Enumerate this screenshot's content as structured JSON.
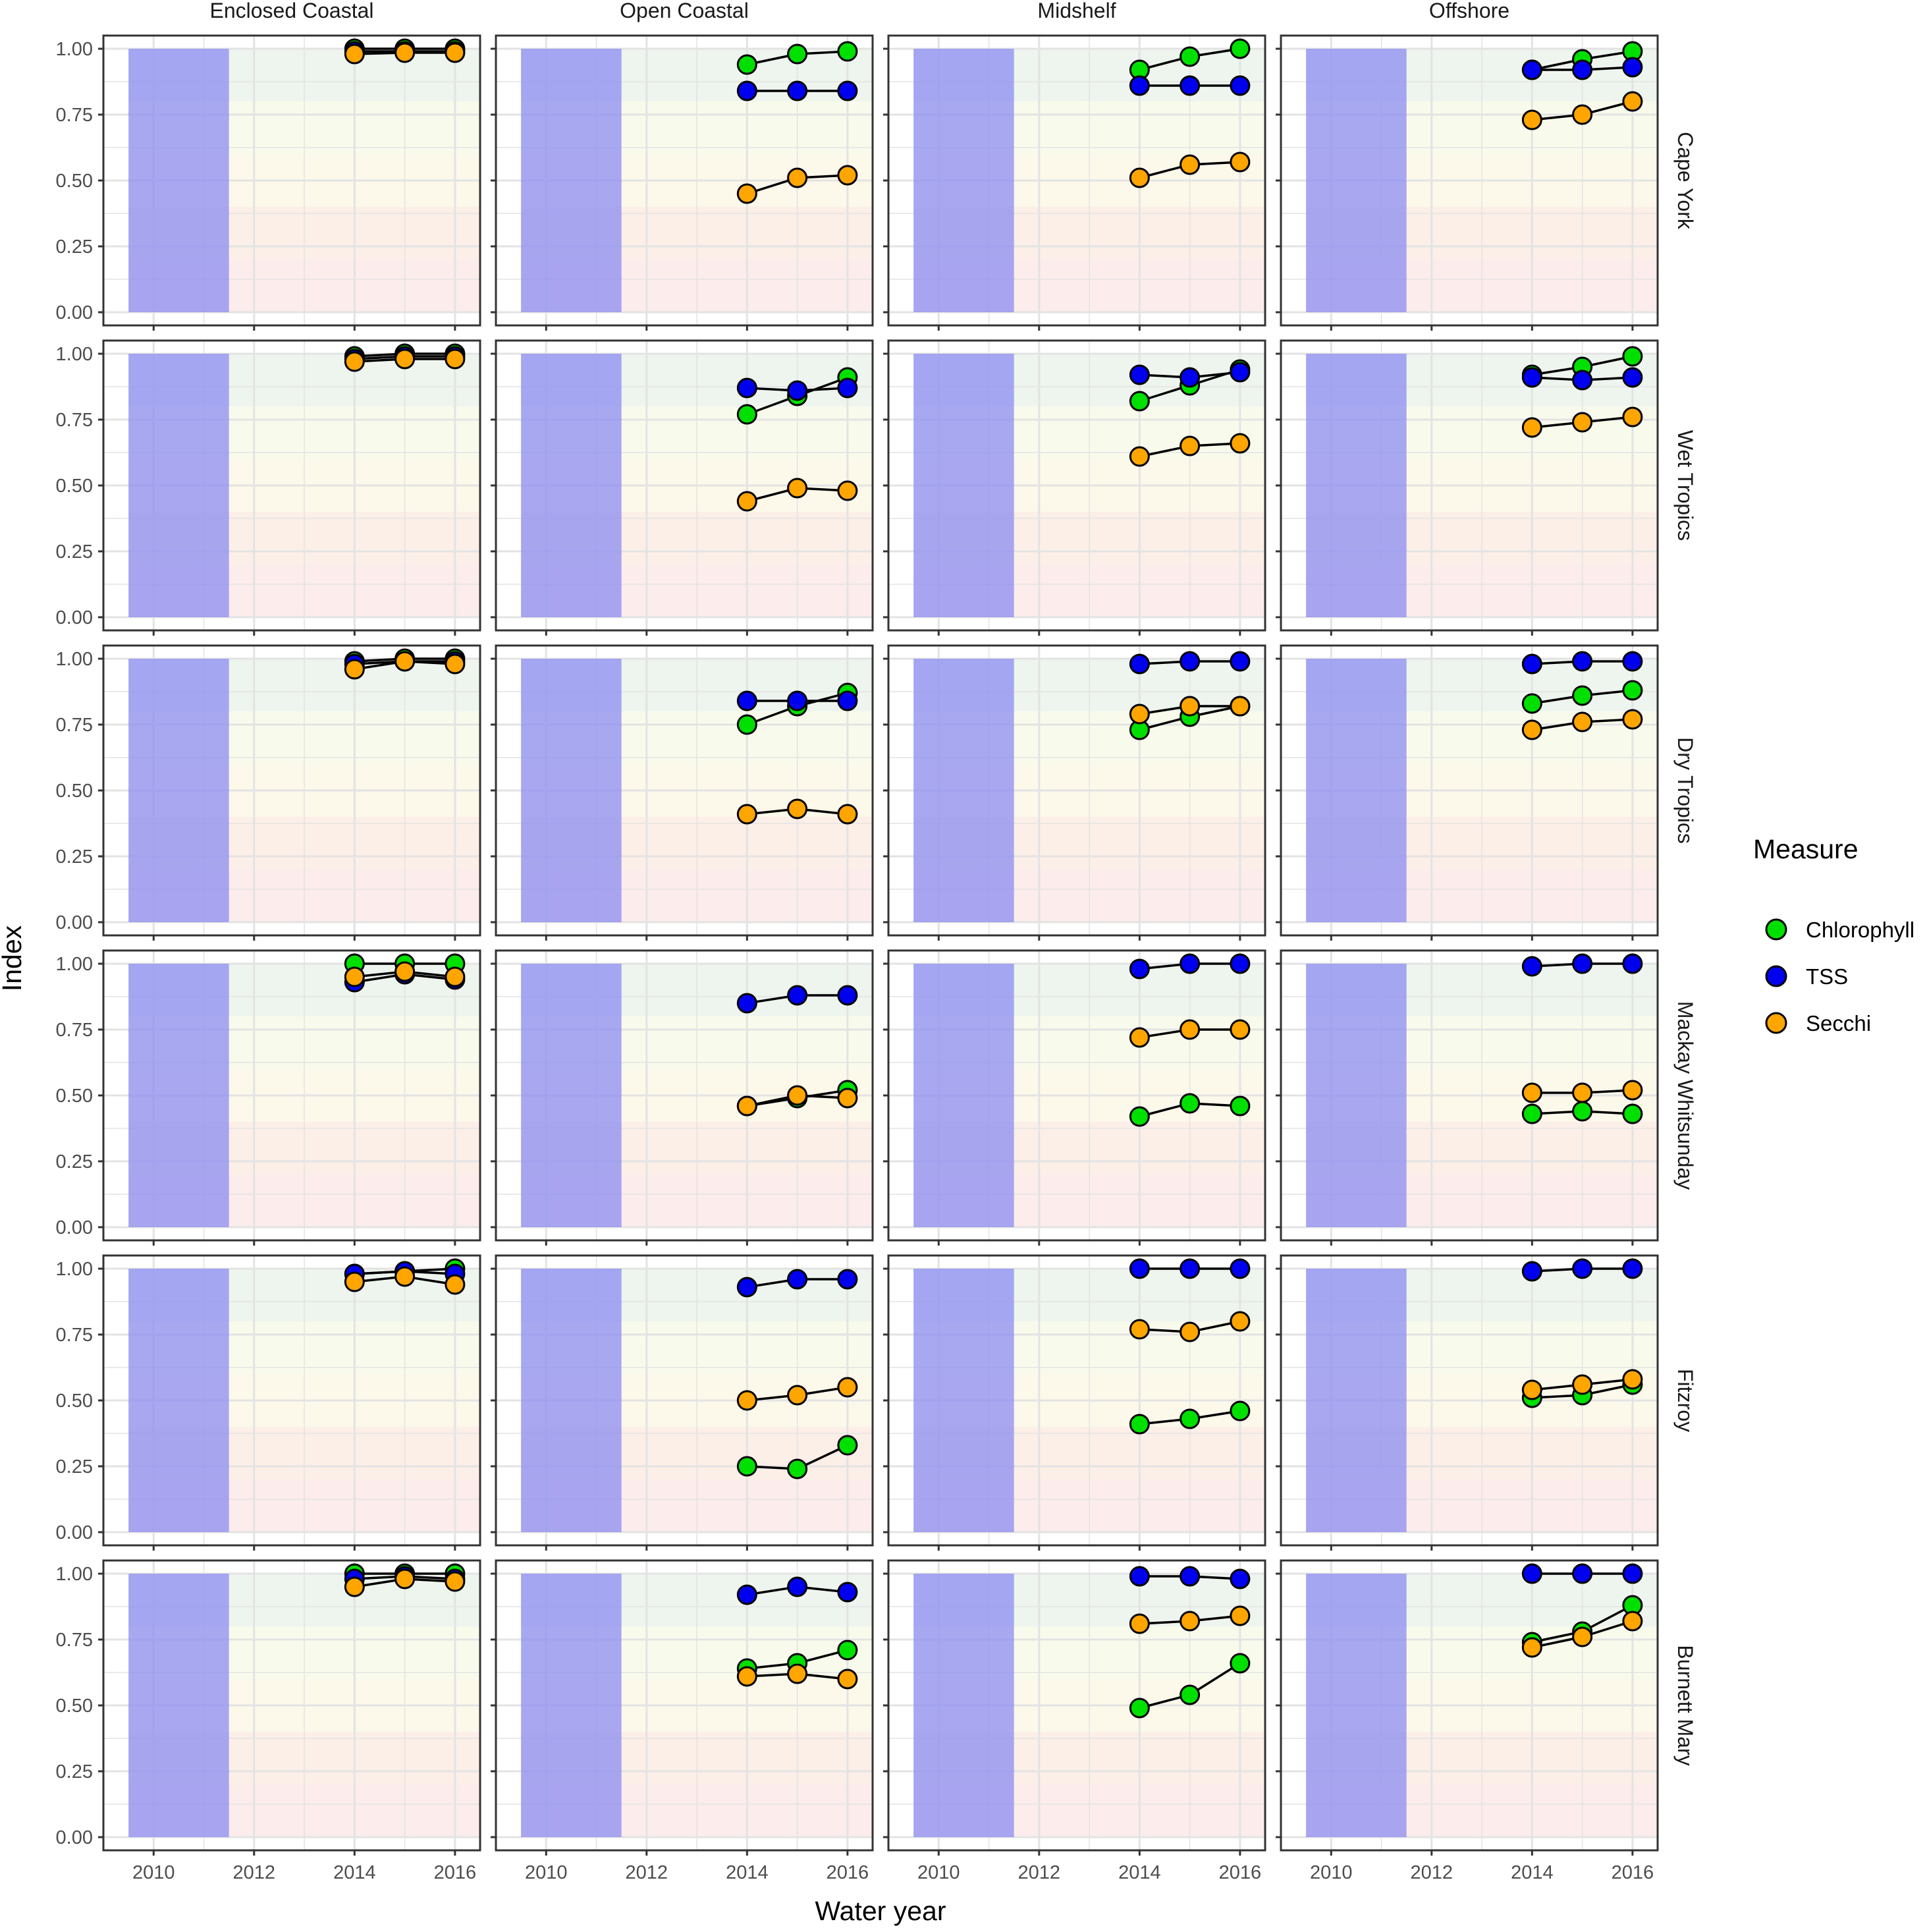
{
  "chart_data": {
    "type": "scatter",
    "xlabel": "Water year",
    "ylabel": "Index",
    "x_ticks": [
      2010,
      2012,
      2014,
      2016
    ],
    "y_ticks": [
      "0.00",
      "0.25",
      "0.50",
      "0.75",
      "1.00"
    ],
    "xlim": [
      2009,
      2016.5
    ],
    "ylim": [
      -0.05,
      1.05
    ],
    "shaded_period": [
      2009.5,
      2011.5
    ],
    "shaded_color": "#8c8cf2",
    "score_bands": [
      {
        "from": 0.0,
        "to": 0.2,
        "color": "#fcecec"
      },
      {
        "from": 0.2,
        "to": 0.4,
        "color": "#fcefe8"
      },
      {
        "from": 0.4,
        "to": 0.6,
        "color": "#fcf8ea"
      },
      {
        "from": 0.6,
        "to": 0.8,
        "color": "#f8fbec"
      },
      {
        "from": 0.8,
        "to": 1.0,
        "color": "#eef4ee"
      }
    ],
    "grid": true,
    "legend": {
      "title": "Measure",
      "position": "right",
      "entries": [
        {
          "name": "Chlorophyll",
          "color": "#00e000"
        },
        {
          "name": "TSS",
          "color": "#0000ee"
        },
        {
          "name": "Secchi",
          "color": "#ffa500"
        }
      ]
    },
    "columns": [
      "Enclosed Coastal",
      "Open Coastal",
      "Midshelf",
      "Offshore"
    ],
    "rows": [
      "Cape York",
      "Wet Tropics",
      "Dry Tropics",
      "Mackay Whitsunday",
      "Fitzroy",
      "Burnett Mary"
    ],
    "x": [
      2014,
      2015,
      2016
    ],
    "panels": [
      {
        "row": "Cape York",
        "column": "Enclosed Coastal",
        "series": [
          {
            "measure": "Chlorophyll",
            "values": [
              1.0,
              1.0,
              1.0
            ]
          },
          {
            "measure": "TSS",
            "values": [
              0.99,
              0.99,
              0.99
            ]
          },
          {
            "measure": "Secchi",
            "values": [
              0.98,
              0.985,
              0.985
            ]
          }
        ]
      },
      {
        "row": "Cape York",
        "column": "Open Coastal",
        "series": [
          {
            "measure": "Chlorophyll",
            "values": [
              0.94,
              0.98,
              0.99
            ]
          },
          {
            "measure": "TSS",
            "values": [
              0.84,
              0.84,
              0.84
            ]
          },
          {
            "measure": "Secchi",
            "values": [
              0.45,
              0.51,
              0.52
            ]
          }
        ]
      },
      {
        "row": "Cape York",
        "column": "Midshelf",
        "series": [
          {
            "measure": "Chlorophyll",
            "values": [
              0.92,
              0.97,
              1.0
            ]
          },
          {
            "measure": "TSS",
            "values": [
              0.86,
              0.86,
              0.86
            ]
          },
          {
            "measure": "Secchi",
            "values": [
              0.51,
              0.56,
              0.57
            ]
          }
        ]
      },
      {
        "row": "Cape York",
        "column": "Offshore",
        "series": [
          {
            "measure": "Chlorophyll",
            "values": [
              0.92,
              0.96,
              0.99
            ]
          },
          {
            "measure": "TSS",
            "values": [
              0.92,
              0.92,
              0.93
            ]
          },
          {
            "measure": "Secchi",
            "values": [
              0.73,
              0.75,
              0.8
            ]
          }
        ]
      },
      {
        "row": "Wet Tropics",
        "column": "Enclosed Coastal",
        "series": [
          {
            "measure": "Chlorophyll",
            "values": [
              0.99,
              1.0,
              1.0
            ]
          },
          {
            "measure": "TSS",
            "values": [
              0.98,
              0.99,
              0.99
            ]
          },
          {
            "measure": "Secchi",
            "values": [
              0.97,
              0.98,
              0.98
            ]
          }
        ]
      },
      {
        "row": "Wet Tropics",
        "column": "Open Coastal",
        "series": [
          {
            "measure": "Chlorophyll",
            "values": [
              0.77,
              0.84,
              0.91
            ]
          },
          {
            "measure": "TSS",
            "values": [
              0.87,
              0.86,
              0.87
            ]
          },
          {
            "measure": "Secchi",
            "values": [
              0.44,
              0.49,
              0.48
            ]
          }
        ]
      },
      {
        "row": "Wet Tropics",
        "column": "Midshelf",
        "series": [
          {
            "measure": "Chlorophyll",
            "values": [
              0.82,
              0.88,
              0.94
            ]
          },
          {
            "measure": "TSS",
            "values": [
              0.92,
              0.91,
              0.93
            ]
          },
          {
            "measure": "Secchi",
            "values": [
              0.61,
              0.65,
              0.66
            ]
          }
        ]
      },
      {
        "row": "Wet Tropics",
        "column": "Offshore",
        "series": [
          {
            "measure": "Chlorophyll",
            "values": [
              0.92,
              0.95,
              0.99
            ]
          },
          {
            "measure": "TSS",
            "values": [
              0.91,
              0.9,
              0.91
            ]
          },
          {
            "measure": "Secchi",
            "values": [
              0.72,
              0.74,
              0.76
            ]
          }
        ]
      },
      {
        "row": "Dry Tropics",
        "column": "Enclosed Coastal",
        "series": [
          {
            "measure": "Chlorophyll",
            "values": [
              0.99,
              1.0,
              1.0
            ]
          },
          {
            "measure": "TSS",
            "values": [
              0.98,
              0.99,
              0.99
            ]
          },
          {
            "measure": "Secchi",
            "values": [
              0.96,
              0.99,
              0.98
            ]
          }
        ]
      },
      {
        "row": "Dry Tropics",
        "column": "Open Coastal",
        "series": [
          {
            "measure": "Chlorophyll",
            "values": [
              0.75,
              0.82,
              0.87
            ]
          },
          {
            "measure": "TSS",
            "values": [
              0.84,
              0.84,
              0.84
            ]
          },
          {
            "measure": "Secchi",
            "values": [
              0.41,
              0.43,
              0.41
            ]
          }
        ]
      },
      {
        "row": "Dry Tropics",
        "column": "Midshelf",
        "series": [
          {
            "measure": "Chlorophyll",
            "values": [
              0.73,
              0.78,
              0.82
            ]
          },
          {
            "measure": "TSS",
            "values": [
              0.98,
              0.99,
              0.99
            ]
          },
          {
            "measure": "Secchi",
            "values": [
              0.79,
              0.82,
              0.82
            ]
          }
        ]
      },
      {
        "row": "Dry Tropics",
        "column": "Offshore",
        "series": [
          {
            "measure": "Chlorophyll",
            "values": [
              0.83,
              0.86,
              0.88
            ]
          },
          {
            "measure": "TSS",
            "values": [
              0.98,
              0.99,
              0.99
            ]
          },
          {
            "measure": "Secchi",
            "values": [
              0.73,
              0.76,
              0.77
            ]
          }
        ]
      },
      {
        "row": "Mackay Whitsunday",
        "column": "Enclosed Coastal",
        "series": [
          {
            "measure": "Chlorophyll",
            "values": [
              1.0,
              1.0,
              1.0
            ]
          },
          {
            "measure": "TSS",
            "values": [
              0.93,
              0.96,
              0.94
            ]
          },
          {
            "measure": "Secchi",
            "values": [
              0.95,
              0.97,
              0.95
            ]
          }
        ]
      },
      {
        "row": "Mackay Whitsunday",
        "column": "Open Coastal",
        "series": [
          {
            "measure": "Chlorophyll",
            "values": [
              0.46,
              0.49,
              0.52
            ]
          },
          {
            "measure": "TSS",
            "values": [
              0.85,
              0.88,
              0.88
            ]
          },
          {
            "measure": "Secchi",
            "values": [
              0.46,
              0.5,
              0.49
            ]
          }
        ]
      },
      {
        "row": "Mackay Whitsunday",
        "column": "Midshelf",
        "series": [
          {
            "measure": "Chlorophyll",
            "values": [
              0.42,
              0.47,
              0.46
            ]
          },
          {
            "measure": "TSS",
            "values": [
              0.98,
              1.0,
              1.0
            ]
          },
          {
            "measure": "Secchi",
            "values": [
              0.72,
              0.75,
              0.75
            ]
          }
        ]
      },
      {
        "row": "Mackay Whitsunday",
        "column": "Offshore",
        "series": [
          {
            "measure": "Chlorophyll",
            "values": [
              0.43,
              0.44,
              0.43
            ]
          },
          {
            "measure": "TSS",
            "values": [
              0.99,
              1.0,
              1.0
            ]
          },
          {
            "measure": "Secchi",
            "values": [
              0.51,
              0.51,
              0.52
            ]
          }
        ]
      },
      {
        "row": "Fitzroy",
        "column": "Enclosed Coastal",
        "series": [
          {
            "measure": "Chlorophyll",
            "values": [
              0.98,
              0.99,
              1.0
            ]
          },
          {
            "measure": "TSS",
            "values": [
              0.98,
              0.99,
              0.98
            ]
          },
          {
            "measure": "Secchi",
            "values": [
              0.95,
              0.97,
              0.94
            ]
          }
        ]
      },
      {
        "row": "Fitzroy",
        "column": "Open Coastal",
        "series": [
          {
            "measure": "Chlorophyll",
            "values": [
              0.25,
              0.24,
              0.33
            ]
          },
          {
            "measure": "TSS",
            "values": [
              0.93,
              0.96,
              0.96
            ]
          },
          {
            "measure": "Secchi",
            "values": [
              0.5,
              0.52,
              0.55
            ]
          }
        ]
      },
      {
        "row": "Fitzroy",
        "column": "Midshelf",
        "series": [
          {
            "measure": "Chlorophyll",
            "values": [
              0.41,
              0.43,
              0.46
            ]
          },
          {
            "measure": "TSS",
            "values": [
              1.0,
              1.0,
              1.0
            ]
          },
          {
            "measure": "Secchi",
            "values": [
              0.77,
              0.76,
              0.8
            ]
          }
        ]
      },
      {
        "row": "Fitzroy",
        "column": "Offshore",
        "series": [
          {
            "measure": "Chlorophyll",
            "values": [
              0.51,
              0.52,
              0.56
            ]
          },
          {
            "measure": "TSS",
            "values": [
              0.99,
              1.0,
              1.0
            ]
          },
          {
            "measure": "Secchi",
            "values": [
              0.54,
              0.56,
              0.58
            ]
          }
        ]
      },
      {
        "row": "Burnett Mary",
        "column": "Enclosed Coastal",
        "series": [
          {
            "measure": "Chlorophyll",
            "values": [
              1.0,
              1.0,
              1.0
            ]
          },
          {
            "measure": "TSS",
            "values": [
              0.98,
              0.99,
              0.98
            ]
          },
          {
            "measure": "Secchi",
            "values": [
              0.95,
              0.98,
              0.97
            ]
          }
        ]
      },
      {
        "row": "Burnett Mary",
        "column": "Open Coastal",
        "series": [
          {
            "measure": "Chlorophyll",
            "values": [
              0.64,
              0.66,
              0.71
            ]
          },
          {
            "measure": "TSS",
            "values": [
              0.92,
              0.95,
              0.93
            ]
          },
          {
            "measure": "Secchi",
            "values": [
              0.61,
              0.62,
              0.6
            ]
          }
        ]
      },
      {
        "row": "Burnett Mary",
        "column": "Midshelf",
        "series": [
          {
            "measure": "Chlorophyll",
            "values": [
              0.49,
              0.54,
              0.66
            ]
          },
          {
            "measure": "TSS",
            "values": [
              0.99,
              0.99,
              0.98
            ]
          },
          {
            "measure": "Secchi",
            "values": [
              0.81,
              0.82,
              0.84
            ]
          }
        ]
      },
      {
        "row": "Burnett Mary",
        "column": "Offshore",
        "series": [
          {
            "measure": "Chlorophyll",
            "values": [
              0.74,
              0.78,
              0.88
            ]
          },
          {
            "measure": "TSS",
            "values": [
              1.0,
              1.0,
              1.0
            ]
          },
          {
            "measure": "Secchi",
            "values": [
              0.72,
              0.76,
              0.82
            ]
          }
        ]
      }
    ]
  }
}
